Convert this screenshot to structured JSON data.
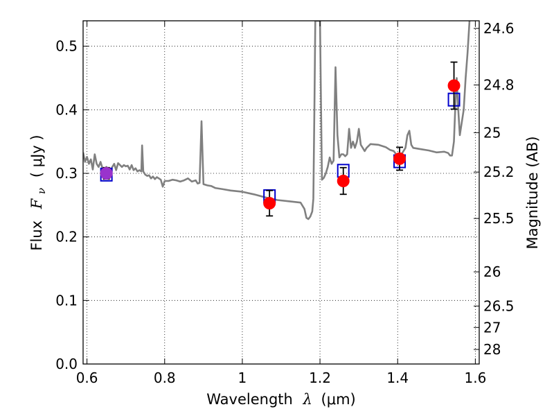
{
  "chart_data": {
    "type": "scatter",
    "xlabel": {
      "text": "Wavelength",
      "symbol": "λ",
      "unit": "(μm)"
    },
    "ylabel": {
      "text": "Flux",
      "symbol_main": "F",
      "symbol_sub": "ν",
      "unit": "( μJy )"
    },
    "y2label": "Magnitude (AB)",
    "xlim": [
      0.59,
      1.61
    ],
    "ylim": [
      0.0,
      0.54
    ],
    "grid": true,
    "x_ticks": [
      {
        "value": 0.6,
        "label": "0.6"
      },
      {
        "value": 0.8,
        "label": "0.8"
      },
      {
        "value": 1.0,
        "label": "1"
      },
      {
        "value": 1.2,
        "label": "1.2"
      },
      {
        "value": 1.4,
        "label": "1.4"
      },
      {
        "value": 1.6,
        "label": "1.6"
      }
    ],
    "y_ticks": [
      {
        "value": 0.0,
        "label": "0.0"
      },
      {
        "value": 0.1,
        "label": "0.1"
      },
      {
        "value": 0.2,
        "label": "0.2"
      },
      {
        "value": 0.3,
        "label": "0.3"
      },
      {
        "value": 0.4,
        "label": "0.4"
      },
      {
        "value": 0.5,
        "label": "0.5"
      }
    ],
    "y2_ticks": [
      {
        "flux": 0.528,
        "label": "24.6"
      },
      {
        "flux": 0.439,
        "label": "24.8"
      },
      {
        "flux": 0.364,
        "label": "25"
      },
      {
        "flux": 0.302,
        "label": "25.2"
      },
      {
        "flux": 0.229,
        "label": "25.5"
      },
      {
        "flux": 0.145,
        "label": "26"
      },
      {
        "flux": 0.0912,
        "label": "26.5"
      },
      {
        "flux": 0.0575,
        "label": "27"
      },
      {
        "flux": 0.0229,
        "label": "28"
      }
    ],
    "series": [
      {
        "kind": "line",
        "color": "#808080",
        "points": [
          [
            0.59,
            0.333
          ],
          [
            0.595,
            0.318
          ],
          [
            0.6,
            0.326
          ],
          [
            0.605,
            0.315
          ],
          [
            0.61,
            0.322
          ],
          [
            0.615,
            0.306
          ],
          [
            0.62,
            0.33
          ],
          [
            0.625,
            0.315
          ],
          [
            0.63,
            0.31
          ],
          [
            0.635,
            0.318
          ],
          [
            0.64,
            0.308
          ],
          [
            0.645,
            0.305
          ],
          [
            0.65,
            0.31
          ],
          [
            0.655,
            0.306
          ],
          [
            0.66,
            0.303
          ],
          [
            0.665,
            0.31
          ],
          [
            0.67,
            0.315
          ],
          [
            0.675,
            0.305
          ],
          [
            0.68,
            0.316
          ],
          [
            0.685,
            0.313
          ],
          [
            0.69,
            0.31
          ],
          [
            0.695,
            0.313
          ],
          [
            0.7,
            0.311
          ],
          [
            0.705,
            0.312
          ],
          [
            0.71,
            0.306
          ],
          [
            0.715,
            0.313
          ],
          [
            0.72,
            0.305
          ],
          [
            0.725,
            0.308
          ],
          [
            0.73,
            0.303
          ],
          [
            0.735,
            0.305
          ],
          [
            0.74,
            0.303
          ],
          [
            0.742,
            0.344
          ],
          [
            0.745,
            0.303
          ],
          [
            0.75,
            0.298
          ],
          [
            0.755,
            0.296
          ],
          [
            0.76,
            0.297
          ],
          [
            0.765,
            0.292
          ],
          [
            0.77,
            0.295
          ],
          [
            0.775,
            0.291
          ],
          [
            0.78,
            0.294
          ],
          [
            0.785,
            0.292
          ],
          [
            0.79,
            0.29
          ],
          [
            0.795,
            0.279
          ],
          [
            0.8,
            0.288
          ],
          [
            0.81,
            0.288
          ],
          [
            0.82,
            0.29
          ],
          [
            0.83,
            0.289
          ],
          [
            0.84,
            0.287
          ],
          [
            0.85,
            0.289
          ],
          [
            0.86,
            0.292
          ],
          [
            0.87,
            0.287
          ],
          [
            0.88,
            0.289
          ],
          [
            0.885,
            0.284
          ],
          [
            0.89,
            0.285
          ],
          [
            0.895,
            0.382
          ],
          [
            0.9,
            0.283
          ],
          [
            0.91,
            0.281
          ],
          [
            0.92,
            0.28
          ],
          [
            0.93,
            0.277
          ],
          [
            0.94,
            0.276
          ],
          [
            0.95,
            0.275
          ],
          [
            0.97,
            0.273
          ],
          [
            1.0,
            0.271
          ],
          [
            1.03,
            0.267
          ],
          [
            1.06,
            0.262
          ],
          [
            1.09,
            0.258
          ],
          [
            1.12,
            0.256
          ],
          [
            1.15,
            0.254
          ],
          [
            1.16,
            0.244
          ],
          [
            1.165,
            0.23
          ],
          [
            1.17,
            0.228
          ],
          [
            1.175,
            0.232
          ],
          [
            1.18,
            0.24
          ],
          [
            1.183,
            0.26
          ],
          [
            1.186,
            0.42
          ],
          [
            1.188,
            0.54
          ],
          [
            1.2,
            0.54
          ],
          [
            1.202,
            0.44
          ],
          [
            1.205,
            0.29
          ],
          [
            1.21,
            0.293
          ],
          [
            1.215,
            0.3
          ],
          [
            1.22,
            0.31
          ],
          [
            1.225,
            0.325
          ],
          [
            1.23,
            0.315
          ],
          [
            1.235,
            0.32
          ],
          [
            1.24,
            0.467
          ],
          [
            1.245,
            0.36
          ],
          [
            1.25,
            0.325
          ],
          [
            1.255,
            0.33
          ],
          [
            1.26,
            0.33
          ],
          [
            1.265,
            0.327
          ],
          [
            1.27,
            0.33
          ],
          [
            1.275,
            0.37
          ],
          [
            1.28,
            0.34
          ],
          [
            1.285,
            0.35
          ],
          [
            1.29,
            0.34
          ],
          [
            1.295,
            0.35
          ],
          [
            1.3,
            0.37
          ],
          [
            1.305,
            0.345
          ],
          [
            1.31,
            0.34
          ],
          [
            1.315,
            0.335
          ],
          [
            1.32,
            0.34
          ],
          [
            1.33,
            0.346
          ],
          [
            1.35,
            0.345
          ],
          [
            1.37,
            0.341
          ],
          [
            1.38,
            0.337
          ],
          [
            1.39,
            0.335
          ],
          [
            1.4,
            0.327
          ],
          [
            1.41,
            0.33
          ],
          [
            1.42,
            0.34
          ],
          [
            1.425,
            0.36
          ],
          [
            1.43,
            0.367
          ],
          [
            1.435,
            0.345
          ],
          [
            1.44,
            0.34
          ],
          [
            1.46,
            0.338
          ],
          [
            1.48,
            0.336
          ],
          [
            1.5,
            0.333
          ],
          [
            1.52,
            0.334
          ],
          [
            1.53,
            0.332
          ],
          [
            1.535,
            0.328
          ],
          [
            1.54,
            0.328
          ],
          [
            1.545,
            0.35
          ],
          [
            1.55,
            0.43
          ],
          [
            1.552,
            0.45
          ],
          [
            1.555,
            0.41
          ],
          [
            1.56,
            0.36
          ],
          [
            1.565,
            0.38
          ],
          [
            1.57,
            0.4
          ],
          [
            1.575,
            0.45
          ],
          [
            1.58,
            0.49
          ],
          [
            1.585,
            0.54
          ]
        ]
      },
      {
        "kind": "errorbar",
        "marker": "circle",
        "color": "#ff0000",
        "points": [
          {
            "x": 0.65,
            "y": 0.3,
            "yerr": 0.009
          },
          {
            "x": 1.07,
            "y": 0.253,
            "yerr": 0.02
          },
          {
            "x": 1.26,
            "y": 0.288,
            "yerr": 0.021
          },
          {
            "x": 1.405,
            "y": 0.323,
            "yerr": 0.018
          },
          {
            "x": 1.545,
            "y": 0.438,
            "yerr": 0.037
          }
        ]
      },
      {
        "kind": "markers",
        "marker": "square-open",
        "color": "#0000cc",
        "points": [
          {
            "x": 0.65,
            "y": 0.298
          },
          {
            "x": 1.07,
            "y": 0.264
          },
          {
            "x": 1.26,
            "y": 0.304
          },
          {
            "x": 1.405,
            "y": 0.319
          },
          {
            "x": 1.545,
            "y": 0.416
          }
        ]
      }
    ],
    "highlight_point": {
      "x": 0.65,
      "y": 0.3,
      "color": "#9933cc"
    }
  }
}
